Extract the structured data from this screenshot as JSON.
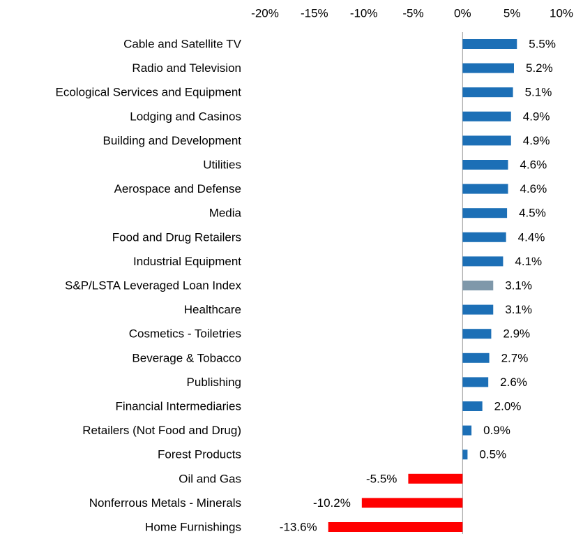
{
  "chart_data": {
    "type": "hbar",
    "categories": [
      "Cable and Satellite TV",
      "Radio and Television",
      "Ecological Services and Equipment",
      "Lodging and Casinos",
      "Building and Development",
      "Utilities",
      "Aerospace and Defense",
      "Media",
      "Food and Drug Retailers",
      "Industrial Equipment",
      "S&P/LSTA Leveraged Loan Index",
      "Healthcare",
      "Cosmetics - Toiletries",
      "Beverage & Tobacco",
      "Publishing",
      "Financial Intermediaries",
      "Retailers (Not Food and Drug)",
      "Forest Products",
      "Oil and Gas",
      "Nonferrous Metals - Minerals",
      "Home Furnishings"
    ],
    "values": [
      5.5,
      5.2,
      5.1,
      4.9,
      4.9,
      4.6,
      4.6,
      4.5,
      4.4,
      4.1,
      3.1,
      3.1,
      2.9,
      2.7,
      2.6,
      2.0,
      0.9,
      0.5,
      -5.5,
      -10.2,
      -13.6
    ],
    "value_labels": [
      "5.5%",
      "5.2%",
      "5.1%",
      "4.9%",
      "4.9%",
      "4.6%",
      "4.6%",
      "4.5%",
      "4.4%",
      "4.1%",
      "3.1%",
      "3.1%",
      "2.9%",
      "2.7%",
      "2.6%",
      "2.0%",
      "0.9%",
      "0.5%",
      "-5.5%",
      "-10.2%",
      "-13.6%"
    ],
    "colors": [
      "#1c6fb6",
      "#1c6fb6",
      "#1c6fb6",
      "#1c6fb6",
      "#1c6fb6",
      "#1c6fb6",
      "#1c6fb6",
      "#1c6fb6",
      "#1c6fb6",
      "#1c6fb6",
      "#7f98aa",
      "#1c6fb6",
      "#1c6fb6",
      "#1c6fb6",
      "#1c6fb6",
      "#1c6fb6",
      "#1c6fb6",
      "#1c6fb6",
      "#ff0000",
      "#ff0000",
      "#ff0000"
    ],
    "xlim": [
      -20,
      10
    ],
    "xticks": [
      {
        "value": -20,
        "label": "-20%"
      },
      {
        "value": -15,
        "label": "-15%"
      },
      {
        "value": -10,
        "label": "-10%"
      },
      {
        "value": -5,
        "label": "-5%"
      },
      {
        "value": 0,
        "label": "0%"
      },
      {
        "value": 5,
        "label": "5%"
      },
      {
        "value": 10,
        "label": "10%"
      }
    ],
    "grid": false
  }
}
